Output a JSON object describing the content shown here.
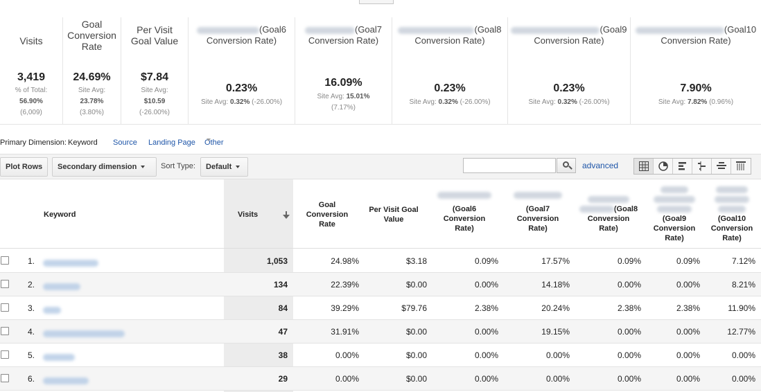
{
  "scorecards": [
    {
      "id": "visits",
      "title": "Visits",
      "value": "3,419",
      "sub1": "% of Total:",
      "sub2": "56.90%",
      "sub3": "(6,009)"
    },
    {
      "id": "goal-conversion-rate",
      "title": "Goal Conversion Rate",
      "value": "24.69%",
      "sub1": "Site Avg:",
      "sub2": "23.78%",
      "sub3": "(3.80%)"
    },
    {
      "id": "per-visit-goal-value",
      "title": "Per Visit Goal Value",
      "value": "$7.84",
      "sub1": "Site Avg:",
      "sub2": "$10.59",
      "sub3": "(-26.00%)"
    },
    {
      "id": "goal6",
      "title_suffix": "(Goal6",
      "title_line2": "Conversion Rate)",
      "value": "0.23%",
      "sub_label": "Site Avg:",
      "sub_value": "0.32%",
      "sub_change": "(-26.00%)"
    },
    {
      "id": "goal7",
      "title_suffix": "(Goal7",
      "title_line2": "Conversion Rate)",
      "value": "16.09%",
      "sub_label": "Site Avg:",
      "sub_value": "15.01%",
      "sub_change": "(7.17%)"
    },
    {
      "id": "goal8",
      "title_suffix": "(Goal8",
      "title_line2": "Conversion Rate)",
      "value": "0.23%",
      "sub_label": "Site Avg:",
      "sub_value": "0.32%",
      "sub_change": "(-26.00%)"
    },
    {
      "id": "goal9",
      "title_suffix": "(Goal9",
      "title_line2": "Conversion Rate)",
      "value": "0.23%",
      "sub_label": "Site Avg:",
      "sub_value": "0.32%",
      "sub_change": "(-26.00%)"
    },
    {
      "id": "goal10",
      "title_suffix": "(Goal10",
      "title_line2": "Conversion Rate)",
      "value": "7.90%",
      "sub_label": "Site Avg:",
      "sub_value": "7.82%",
      "sub_change": "(0.96%)"
    }
  ],
  "dimension_bar": {
    "label": "Primary Dimension:",
    "active": "Keyword",
    "links": [
      "Source",
      "Landing Page"
    ],
    "other": "Other"
  },
  "toolbar": {
    "plot_rows": "Plot Rows",
    "secondary_dimension": "Secondary dimension",
    "sort_type_label": "Sort Type:",
    "sort_type_value": "Default",
    "search_placeholder": "",
    "advanced": "advanced"
  },
  "view_icons": [
    "table-view-icon",
    "pie-view-icon",
    "bar-view-icon",
    "comparison-view-icon",
    "term-cloud-icon",
    "pivot-view-icon"
  ],
  "table": {
    "headers": {
      "keyword": "Keyword",
      "visits": "Visits",
      "goal_conversion_rate": [
        "Goal",
        "Conversion",
        "Rate"
      ],
      "per_visit_goal_value": [
        "Per Visit Goal",
        "Value"
      ],
      "goal6": [
        "(Goal6",
        "Conversion",
        "Rate)"
      ],
      "goal7": [
        "(Goal7",
        "Conversion",
        "Rate)"
      ],
      "goal8": [
        "(Goal8",
        "Conversion",
        "Rate)"
      ],
      "goal9": [
        "(Goal9",
        "Conversion",
        "Rate)"
      ],
      "goal10": [
        "(Goal10",
        "Conversion",
        "Rate)"
      ]
    },
    "rows": [
      {
        "idx": "1.",
        "visits": "1,053",
        "gcr": "24.98%",
        "pvgv": "$3.18",
        "g6": "0.09%",
        "g7": "17.57%",
        "g8": "0.09%",
        "g9": "0.09%",
        "g10": "7.12%"
      },
      {
        "idx": "2.",
        "visits": "134",
        "gcr": "22.39%",
        "pvgv": "$0.00",
        "g6": "0.00%",
        "g7": "14.18%",
        "g8": "0.00%",
        "g9": "0.00%",
        "g10": "8.21%"
      },
      {
        "idx": "3.",
        "visits": "84",
        "gcr": "39.29%",
        "pvgv": "$79.76",
        "g6": "2.38%",
        "g7": "20.24%",
        "g8": "2.38%",
        "g9": "2.38%",
        "g10": "11.90%"
      },
      {
        "idx": "4.",
        "visits": "47",
        "gcr": "31.91%",
        "pvgv": "$0.00",
        "g6": "0.00%",
        "g7": "19.15%",
        "g8": "0.00%",
        "g9": "0.00%",
        "g10": "12.77%"
      },
      {
        "idx": "5.",
        "visits": "38",
        "gcr": "0.00%",
        "pvgv": "$0.00",
        "g6": "0.00%",
        "g7": "0.00%",
        "g8": "0.00%",
        "g9": "0.00%",
        "g10": "0.00%"
      },
      {
        "idx": "6.",
        "visits": "29",
        "gcr": "0.00%",
        "pvgv": "$0.00",
        "g6": "0.00%",
        "g7": "0.00%",
        "g8": "0.00%",
        "g9": "0.00%",
        "g10": "0.00%"
      }
    ]
  },
  "colors": {
    "link": "#1e55a8",
    "sorted_column_bg": "#ececec",
    "border": "#e5e5e5"
  }
}
